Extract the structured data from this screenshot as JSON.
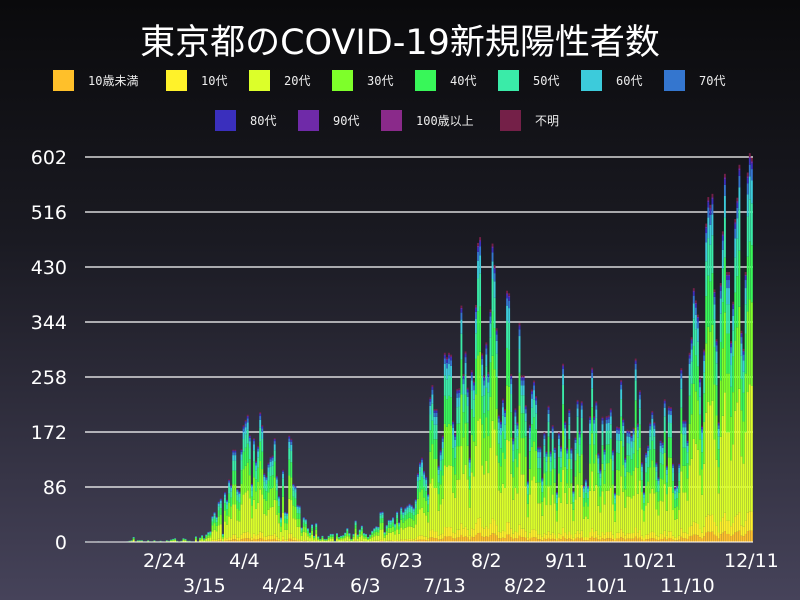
{
  "chart_data": {
    "type": "bar",
    "stacked": true,
    "title": "東京都のCOVID-19新規陽性者数",
    "xlabel": "",
    "ylabel": "",
    "ylim": [
      0,
      602
    ],
    "yticks": [
      "0",
      "86",
      "172",
      "258",
      "344",
      "430",
      "516",
      "602"
    ],
    "xticks": [
      "2/24",
      "3/15",
      "4/4",
      "4/24",
      "5/14",
      "6/3",
      "6/23",
      "7/13",
      "8/2",
      "8/22",
      "9/11",
      "10/1",
      "10/21",
      "11/10",
      "12/11"
    ],
    "grid": true,
    "legend_position": "top",
    "series_names": [
      "10歳未満",
      "10代",
      "20代",
      "30代",
      "40代",
      "50代",
      "60代",
      "70代",
      "80代",
      "90代",
      "100歳以上",
      "不明"
    ],
    "colors": [
      "#ffc02a",
      "#fff22a",
      "#dcff2a",
      "#7eff2a",
      "#38f759",
      "#3aeba8",
      "#3ccbdb",
      "#3476cf",
      "#3a2fbd",
      "#6f2aa8",
      "#8a2a8a",
      "#742048"
    ],
    "approx_share_by_age": [
      0.03,
      0.05,
      0.33,
      0.22,
      0.15,
      0.11,
      0.06,
      0.03,
      0.015,
      0.005,
      0.0,
      0.01
    ],
    "daily_totals": [
      1,
      0,
      0,
      0,
      0,
      0,
      1,
      0,
      0,
      0,
      0,
      0,
      0,
      0,
      0,
      0,
      0,
      0,
      0,
      0,
      1,
      2,
      3,
      8,
      1,
      3,
      3,
      3,
      1,
      1,
      3,
      1,
      1,
      3,
      1,
      1,
      2,
      1,
      0,
      3,
      2,
      4,
      5,
      6,
      2,
      0,
      2,
      6,
      5,
      2,
      2,
      1,
      1,
      9,
      1,
      7,
      11,
      6,
      12,
      16,
      17,
      41,
      47,
      40,
      63,
      68,
      13,
      78,
      66,
      97,
      89,
      143,
      143,
      83,
      79,
      144,
      181,
      189,
      197,
      166,
      91,
      161,
      126,
      149,
      201,
      181,
      107,
      102,
      123,
      132,
      134,
      161,
      103,
      72,
      39,
      112,
      47,
      46,
      165,
      160,
      91,
      87,
      58,
      57,
      23,
      39,
      36,
      22,
      15,
      28,
      10,
      30,
      9,
      5,
      10,
      5,
      5,
      10,
      13,
      13,
      2,
      14,
      8,
      10,
      11,
      15,
      22,
      14,
      5,
      13,
      34,
      12,
      20,
      26,
      14,
      13,
      8,
      12,
      18,
      22,
      25,
      24,
      47,
      48,
      16,
      27,
      35,
      35,
      39,
      29,
      48,
      31,
      55,
      48,
      54,
      57,
      60,
      58,
      54,
      67,
      107,
      124,
      131,
      111,
      102,
      75,
      224,
      243,
      206,
      206,
      119,
      143,
      165,
      293,
      286,
      293,
      290,
      188,
      168,
      237,
      238,
      366,
      260,
      295,
      239,
      131,
      266,
      250,
      367,
      463,
      472,
      292,
      258,
      309,
      263,
      360,
      462,
      429,
      331,
      197,
      188,
      222,
      206,
      389,
      385,
      260,
      161,
      207,
      186,
      339,
      258,
      258,
      212,
      95,
      182,
      236,
      250,
      226,
      148,
      148,
      100,
      170,
      141,
      211,
      141,
      181,
      147,
      78,
      170,
      149,
      276,
      187,
      146,
      206,
      146,
      80,
      163,
      220,
      172,
      218,
      88,
      98,
      88,
      195,
      270,
      195,
      218,
      138,
      113,
      194,
      144,
      195,
      196,
      207,
      143,
      77,
      179,
      178,
      251,
      191,
      131,
      174,
      173,
      166,
      177,
      284,
      184,
      235,
      124,
      78,
      139,
      150,
      185,
      203,
      186,
      124,
      101,
      158,
      155,
      221,
      119,
      210,
      209,
      122,
      85,
      88,
      122,
      269,
      189,
      189,
      158,
      293,
      317,
      393,
      374,
      352,
      255,
      180,
      298,
      493,
      534,
      522,
      539,
      391,
      314,
      186,
      401,
      481,
      570,
      418,
      418,
      311,
      372,
      500,
      533,
      584,
      327,
      299,
      418,
      572,
      602,
      595
    ]
  }
}
